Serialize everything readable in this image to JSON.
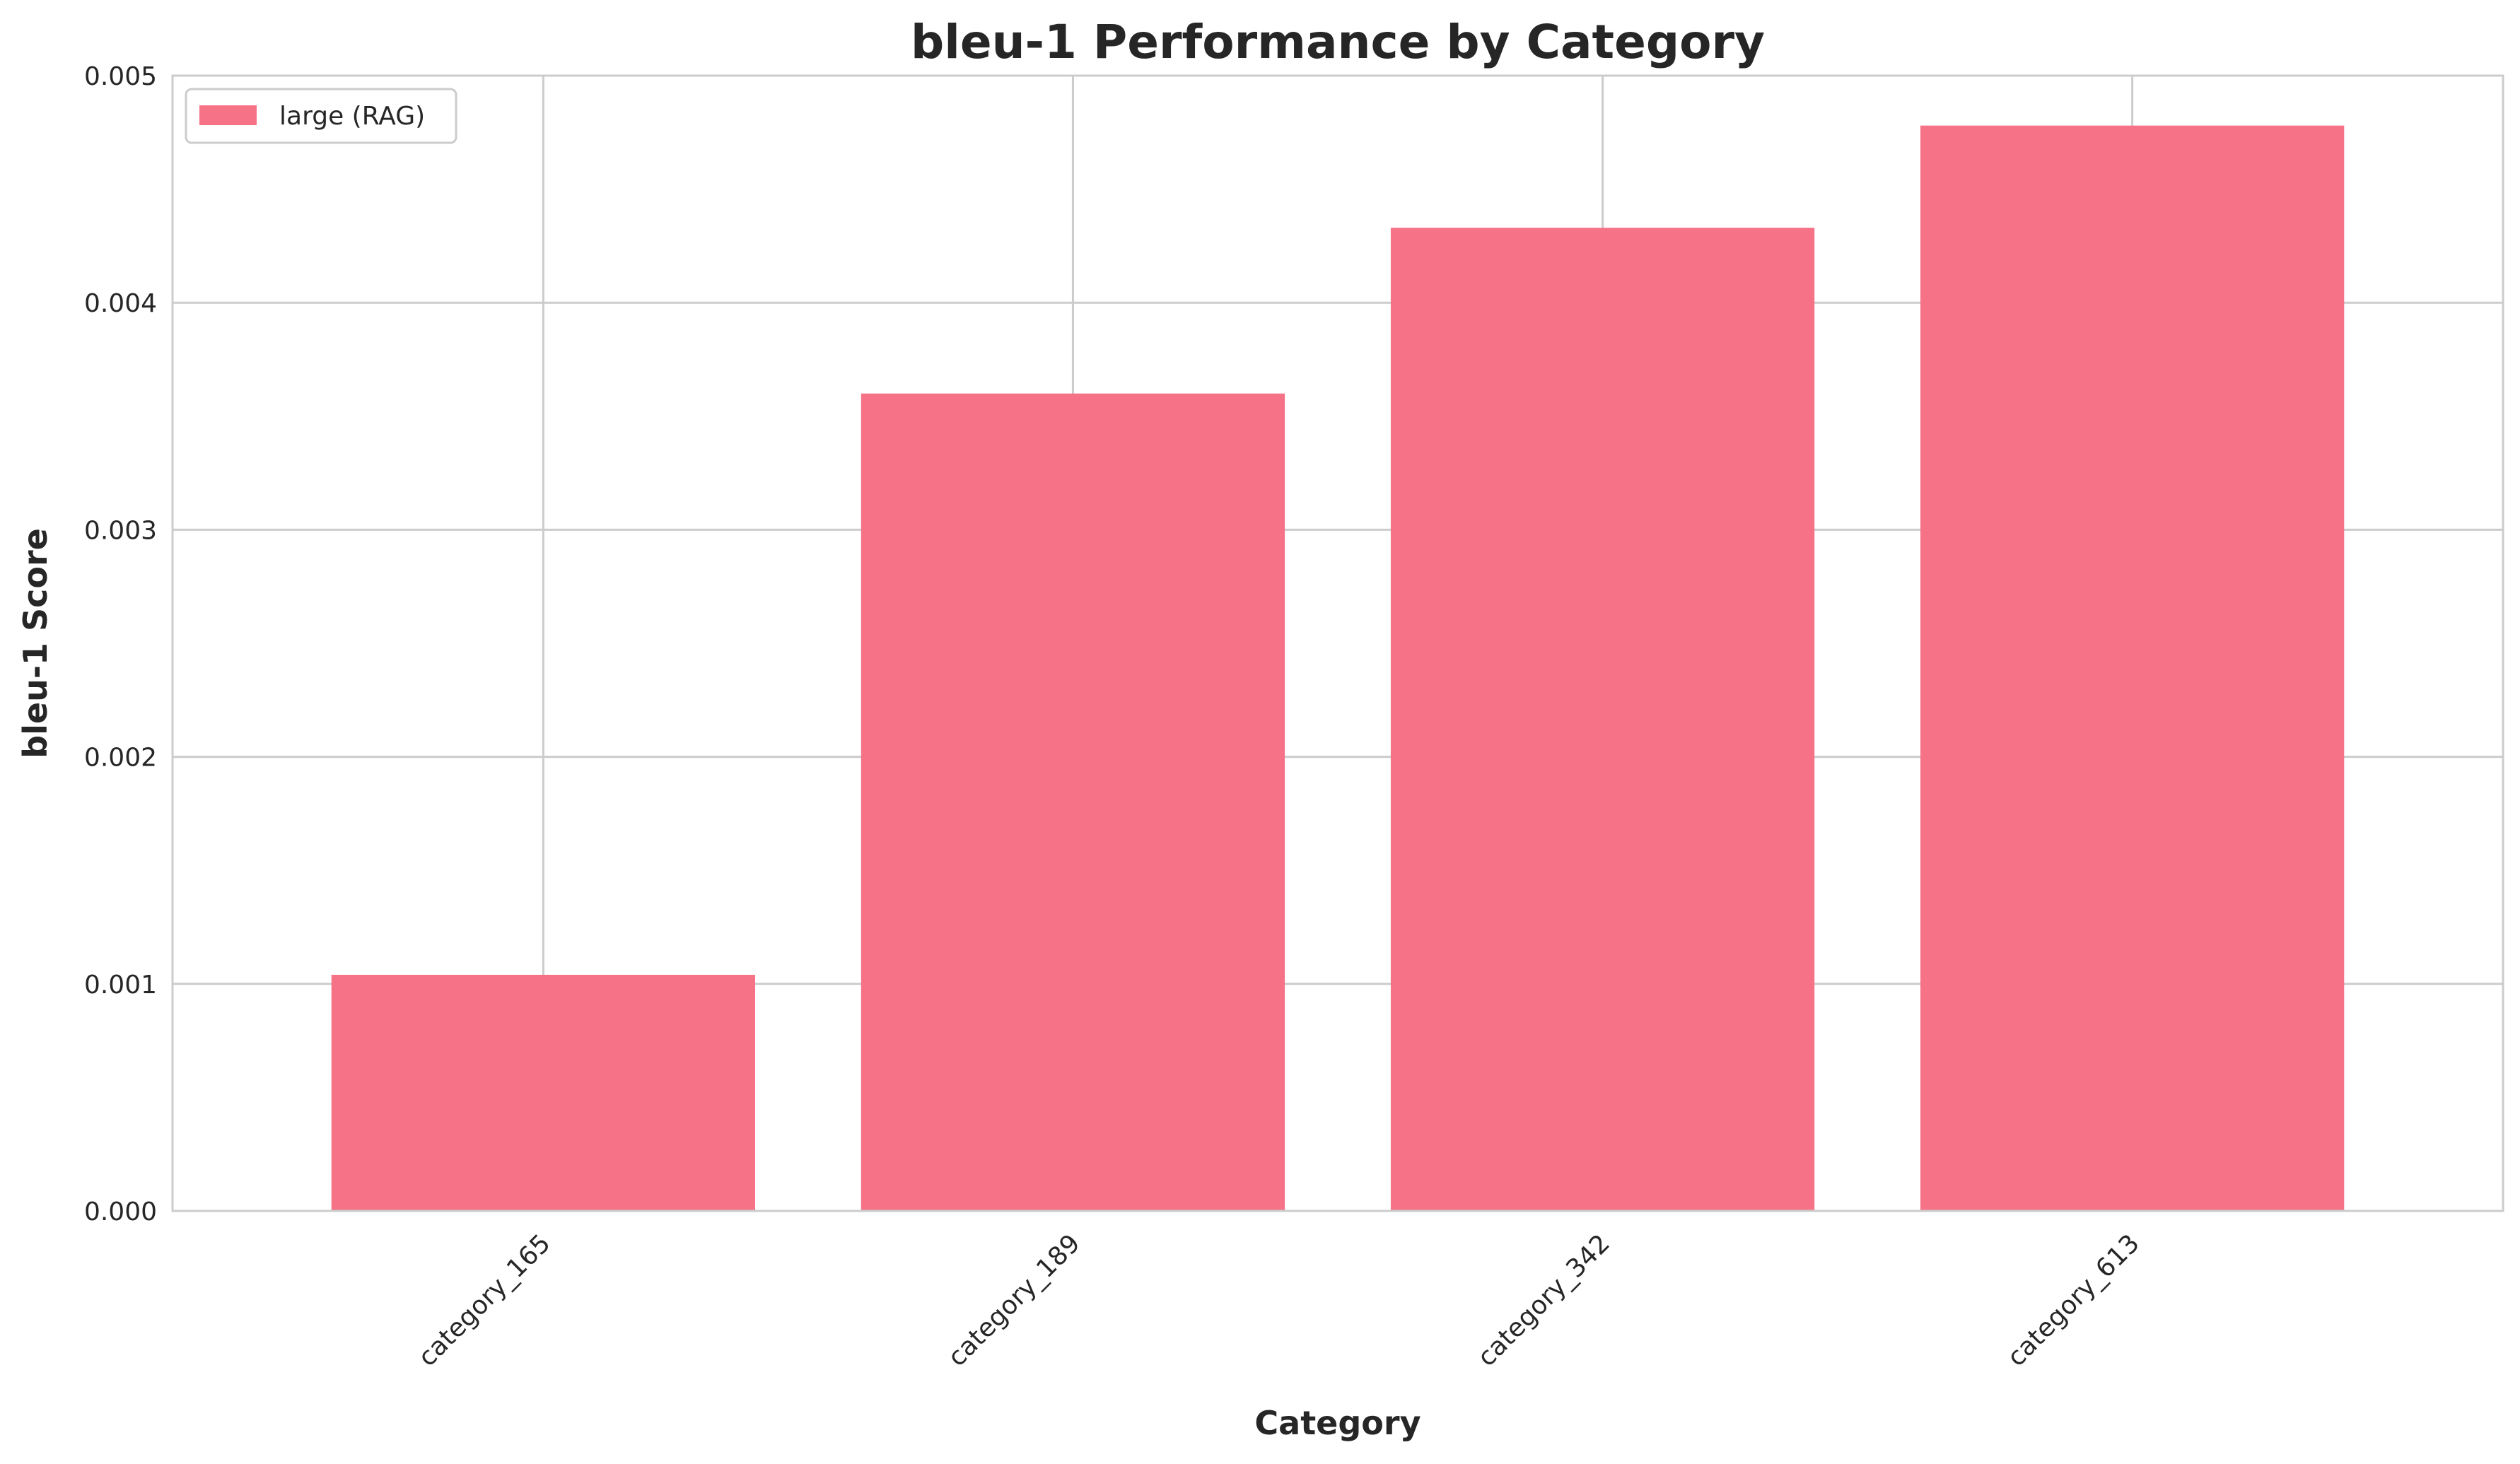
{
  "chart_data": {
    "type": "bar",
    "title": "bleu-1 Performance by Category",
    "xlabel": "Category",
    "ylabel": "bleu-1 Score",
    "categories": [
      "category_165",
      "category_189",
      "category_342",
      "category_613"
    ],
    "series": [
      {
        "name": "large (RAG)",
        "values": [
          0.00104,
          0.0036,
          0.00433,
          0.00478
        ],
        "color": "#f57287"
      }
    ],
    "ylim": [
      0,
      0.005
    ],
    "yticks": [
      "0.000",
      "0.001",
      "0.002",
      "0.003",
      "0.004",
      "0.005"
    ],
    "grid": true,
    "legend_position": "top-left",
    "colors": {
      "grid": "#cccccc",
      "axes_frame": "#cccccc",
      "text": "#262626",
      "background": "#ffffff"
    }
  }
}
